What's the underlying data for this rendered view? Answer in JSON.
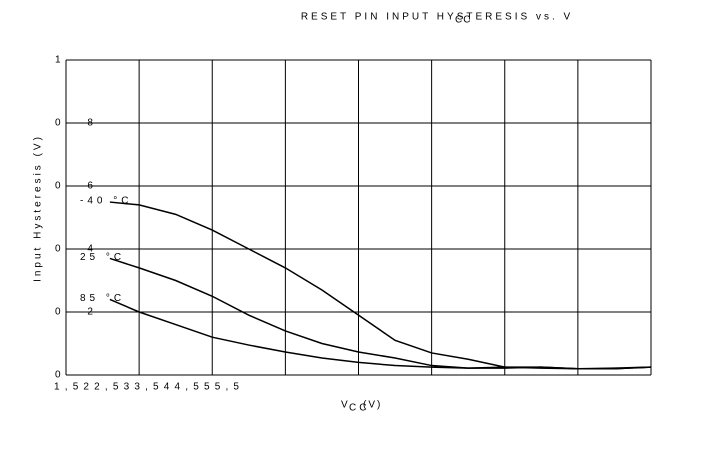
{
  "chart_data": {
    "type": "line",
    "title": "RESET PIN INPUT HYSTERESIS vs. V",
    "title_subscript": "CC",
    "y_label": "Input Hysteresis (V)",
    "x_label": "V",
    "x_label_subscript": "CC",
    "x_label_unit": "(V)",
    "x_tick_text": "1 , 5 2 2 , 5 3 3 , 5 4 4 , 5 5 5 , 5",
    "x": [
      1.8,
      2,
      2.25,
      2.5,
      2.75,
      3,
      3.25,
      3.5,
      3.75,
      4,
      4.25,
      4.5,
      4.75,
      5,
      5.25,
      5.5
    ],
    "series": [
      {
        "name": "-40 °C",
        "color": "#000000",
        "values": [
          0.549,
          0.54,
          0.51,
          0.46,
          0.4,
          0.34,
          0.27,
          0.19,
          0.11,
          0.07,
          0.05,
          0.025,
          0.025,
          0.02,
          0.02,
          0.025
        ]
      },
      {
        "name": "25 °C",
        "color": "#000000",
        "values": [
          0.37,
          0.34,
          0.3,
          0.25,
          0.19,
          0.14,
          0.1,
          0.073,
          0.054,
          0.03,
          0.022,
          0.022,
          0.025,
          0.02,
          0.02,
          0.025
        ]
      },
      {
        "name": "85 °C",
        "color": "#000000",
        "values": [
          0.24,
          0.2,
          0.16,
          0.12,
          0.095,
          0.073,
          0.054,
          0.04,
          0.03,
          0.025,
          0.022,
          0.025,
          0.022,
          0.02,
          0.022,
          0.025
        ]
      }
    ],
    "xlim": [
      1.5,
      5.5
    ],
    "xticks": [
      1.5,
      2,
      2.5,
      3,
      3.5,
      4,
      4.5,
      5,
      5.5
    ],
    "ylim": [
      0,
      1
    ],
    "yticks": [
      0,
      {
        "value": 0.2,
        "label": "0 2"
      },
      {
        "value": 0.4,
        "label": "0 4"
      },
      {
        "value": 0.6,
        "label": "0 6"
      },
      {
        "value": 0.8,
        "label": "0 8"
      },
      1
    ],
    "grid": true
  }
}
